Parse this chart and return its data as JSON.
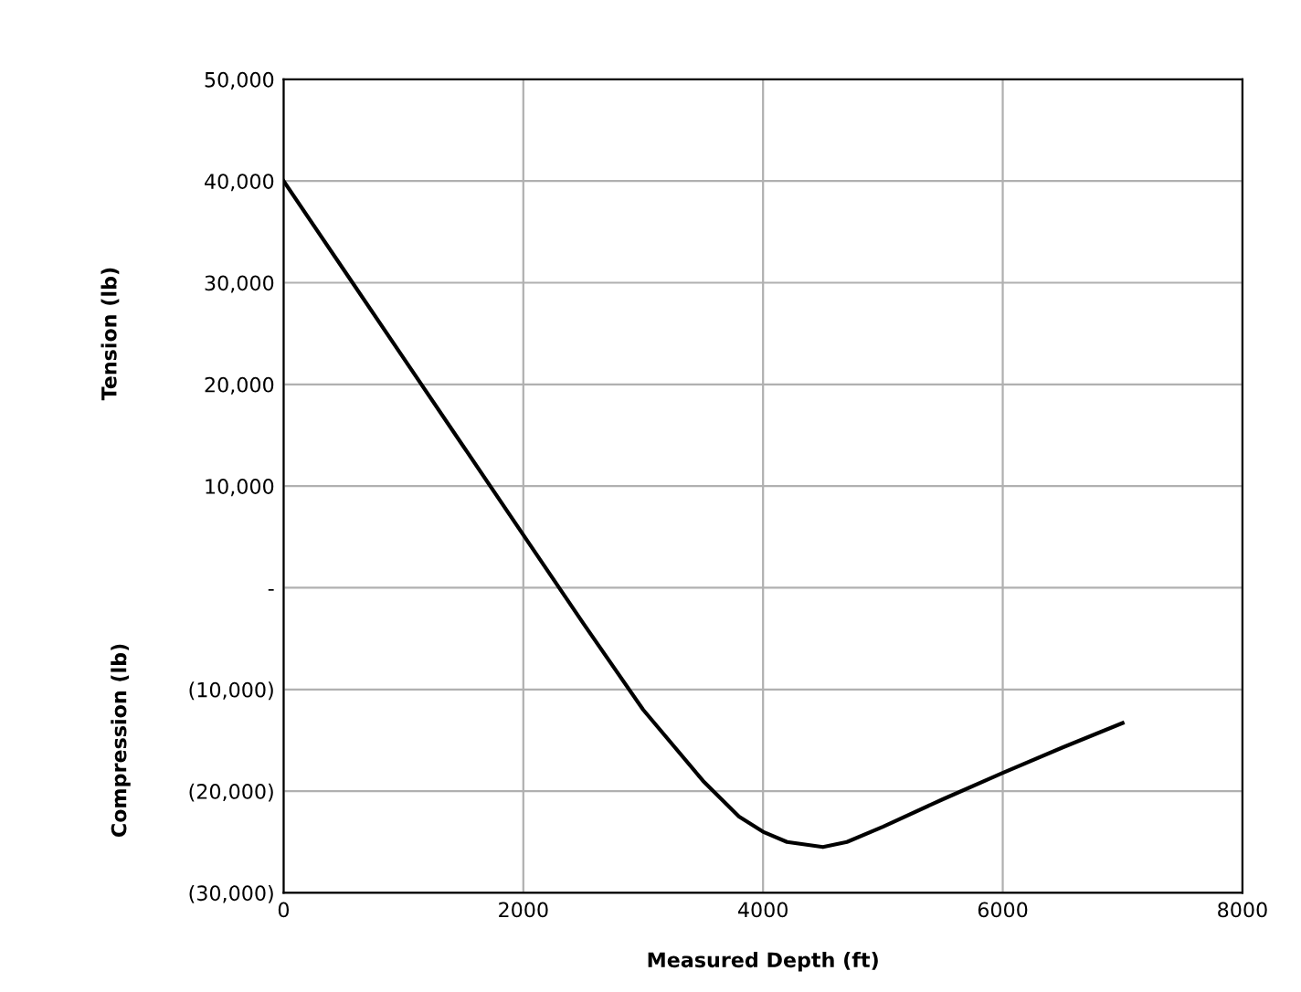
{
  "chart_data": {
    "type": "line",
    "xlabel": "Measured Depth (ft)",
    "ylabel": "Tension (lb)",
    "annotations": [
      "Compression (lb)"
    ],
    "x": [
      0,
      500,
      1000,
      1500,
      2000,
      2500,
      3000,
      3500,
      3800,
      4000,
      4200,
      4500,
      4700,
      5000,
      5500,
      6000,
      6500,
      7000
    ],
    "series": [
      {
        "color": "#000000",
        "values": [
          40000,
          31300,
          22600,
          13900,
          5200,
          -3500,
          -12000,
          -19000,
          -22500,
          -24000,
          -25000,
          -25500,
          -25000,
          -23500,
          -20800,
          -18200,
          -15700,
          -13300
        ]
      }
    ],
    "xlim": [
      0,
      8000
    ],
    "xticks": [
      0,
      2000,
      4000,
      6000,
      8000
    ],
    "ylim": [
      -30000,
      50000
    ],
    "yticks": [
      {
        "value": -30000,
        "label": "(30,000)"
      },
      {
        "value": -20000,
        "label": "(20,000)"
      },
      {
        "value": -10000,
        "label": "(10,000)"
      },
      {
        "value": 0,
        "label": "-"
      },
      {
        "value": 10000,
        "label": "10,000"
      },
      {
        "value": 20000,
        "label": "20,000"
      },
      {
        "value": 30000,
        "label": "30,000"
      },
      {
        "value": 40000,
        "label": "40,000"
      },
      {
        "value": 50000,
        "label": "50,000"
      }
    ],
    "grid": true,
    "marker": "none",
    "line_style": "solid"
  }
}
